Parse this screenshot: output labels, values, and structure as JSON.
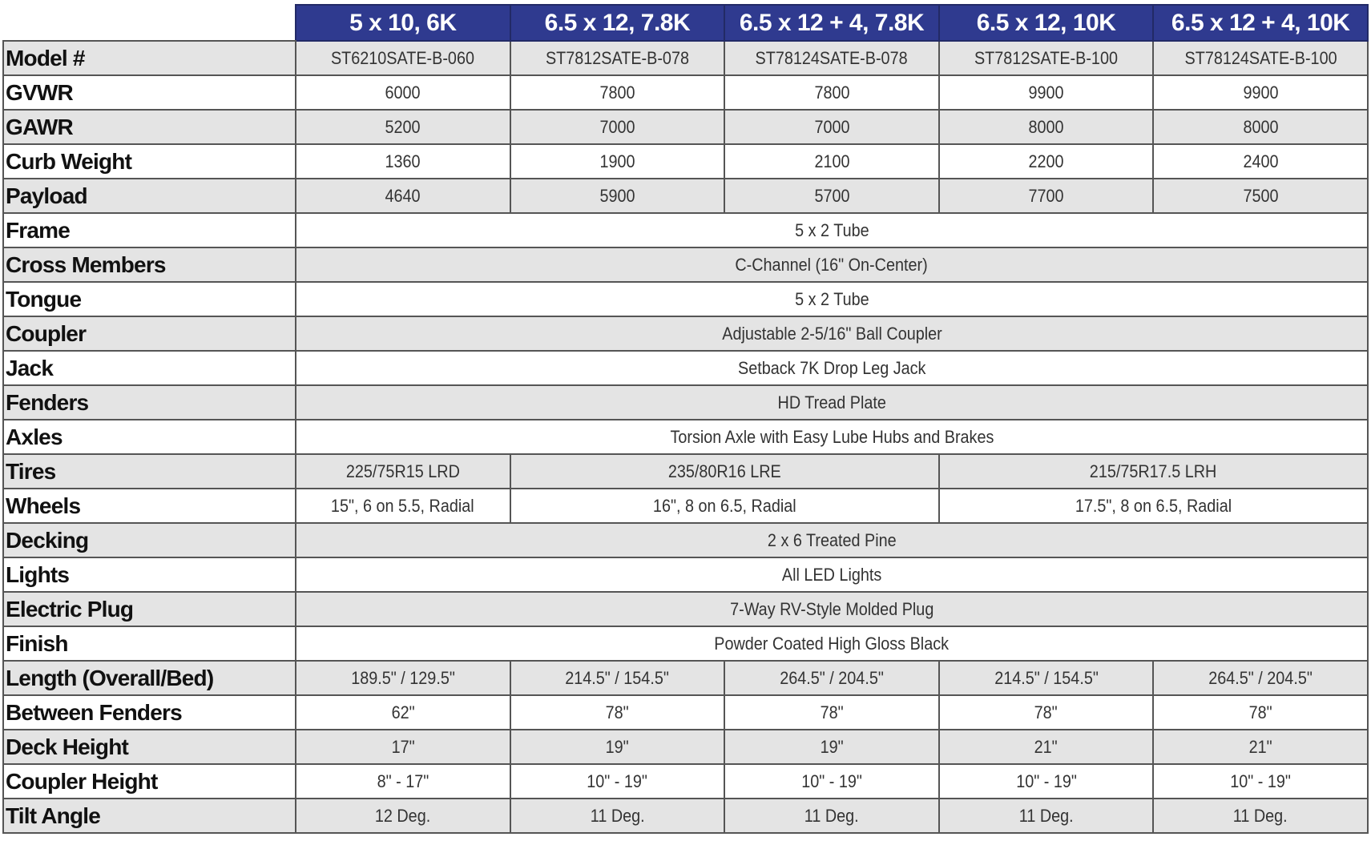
{
  "header": {
    "columns": [
      "5 x 10, 6K",
      "6.5 x 12, 7.8K",
      "6.5 x 12 + 4, 7.8K",
      "6.5 x 12, 10K",
      "6.5 x 12 + 4, 10K"
    ],
    "header_color": "#2f3a8f"
  },
  "rows": [
    {
      "label": "Model #",
      "cells": [
        {
          "v": "ST6210SATE-B-060",
          "span": 1
        },
        {
          "v": "ST7812SATE-B-078",
          "span": 1
        },
        {
          "v": "ST78124SATE-B-078",
          "span": 1
        },
        {
          "v": "ST7812SATE-B-100",
          "span": 1
        },
        {
          "v": "ST78124SATE-B-100",
          "span": 1
        }
      ]
    },
    {
      "label": "GVWR",
      "cells": [
        {
          "v": "6000",
          "span": 1
        },
        {
          "v": "7800",
          "span": 1
        },
        {
          "v": "7800",
          "span": 1
        },
        {
          "v": "9900",
          "span": 1
        },
        {
          "v": "9900",
          "span": 1
        }
      ]
    },
    {
      "label": "GAWR",
      "cells": [
        {
          "v": "5200",
          "span": 1
        },
        {
          "v": "7000",
          "span": 1
        },
        {
          "v": "7000",
          "span": 1
        },
        {
          "v": "8000",
          "span": 1
        },
        {
          "v": "8000",
          "span": 1
        }
      ]
    },
    {
      "label": "Curb Weight",
      "cells": [
        {
          "v": "1360",
          "span": 1
        },
        {
          "v": "1900",
          "span": 1
        },
        {
          "v": "2100",
          "span": 1
        },
        {
          "v": "2200",
          "span": 1
        },
        {
          "v": "2400",
          "span": 1
        }
      ]
    },
    {
      "label": "Payload",
      "cells": [
        {
          "v": "4640",
          "span": 1
        },
        {
          "v": "5900",
          "span": 1
        },
        {
          "v": "5700",
          "span": 1
        },
        {
          "v": "7700",
          "span": 1
        },
        {
          "v": "7500",
          "span": 1
        }
      ]
    },
    {
      "label": "Frame",
      "cells": [
        {
          "v": "5 x 2 Tube",
          "span": 5
        }
      ]
    },
    {
      "label": "Cross Members",
      "cells": [
        {
          "v": "C-Channel (16\" On-Center)",
          "span": 5
        }
      ]
    },
    {
      "label": "Tongue",
      "cells": [
        {
          "v": "5 x 2 Tube",
          "span": 5
        }
      ]
    },
    {
      "label": "Coupler",
      "cells": [
        {
          "v": "Adjustable 2-5/16\" Ball Coupler",
          "span": 5
        }
      ]
    },
    {
      "label": "Jack",
      "cells": [
        {
          "v": "Setback 7K Drop Leg Jack",
          "span": 5
        }
      ]
    },
    {
      "label": "Fenders",
      "cells": [
        {
          "v": "HD Tread Plate",
          "span": 5
        }
      ]
    },
    {
      "label": "Axles",
      "cells": [
        {
          "v": "Torsion Axle with Easy Lube Hubs and Brakes",
          "span": 5
        }
      ]
    },
    {
      "label": "Tires",
      "cells": [
        {
          "v": "225/75R15 LRD",
          "span": 1
        },
        {
          "v": "235/80R16 LRE",
          "span": 2
        },
        {
          "v": "215/75R17.5 LRH",
          "span": 2
        }
      ]
    },
    {
      "label": "Wheels",
      "cells": [
        {
          "v": "15\", 6 on 5.5, Radial",
          "span": 1
        },
        {
          "v": "16\", 8 on 6.5, Radial",
          "span": 2
        },
        {
          "v": "17.5\", 8 on 6.5, Radial",
          "span": 2
        }
      ]
    },
    {
      "label": "Decking",
      "cells": [
        {
          "v": "2 x 6 Treated Pine",
          "span": 5
        }
      ]
    },
    {
      "label": "Lights",
      "cells": [
        {
          "v": "All LED Lights",
          "span": 5
        }
      ]
    },
    {
      "label": "Electric Plug",
      "cells": [
        {
          "v": "7-Way RV-Style Molded Plug",
          "span": 5
        }
      ]
    },
    {
      "label": "Finish",
      "cells": [
        {
          "v": "Powder Coated High Gloss Black",
          "span": 5
        }
      ]
    },
    {
      "label": "Length (Overall/Bed)",
      "cells": [
        {
          "v": "189.5\" / 129.5\"",
          "span": 1
        },
        {
          "v": "214.5\" / 154.5\"",
          "span": 1
        },
        {
          "v": "264.5\" / 204.5\"",
          "span": 1
        },
        {
          "v": "214.5\" / 154.5\"",
          "span": 1
        },
        {
          "v": "264.5\" / 204.5\"",
          "span": 1
        }
      ]
    },
    {
      "label": "Between Fenders",
      "cells": [
        {
          "v": "62\"",
          "span": 1
        },
        {
          "v": "78\"",
          "span": 1
        },
        {
          "v": "78\"",
          "span": 1
        },
        {
          "v": "78\"",
          "span": 1
        },
        {
          "v": "78\"",
          "span": 1
        }
      ]
    },
    {
      "label": "Deck Height",
      "cells": [
        {
          "v": "17\"",
          "span": 1
        },
        {
          "v": "19\"",
          "span": 1
        },
        {
          "v": "19\"",
          "span": 1
        },
        {
          "v": "21\"",
          "span": 1
        },
        {
          "v": "21\"",
          "span": 1
        }
      ]
    },
    {
      "label": "Coupler Height",
      "cells": [
        {
          "v": "8\" - 17\"",
          "span": 1
        },
        {
          "v": "10\" - 19\"",
          "span": 1
        },
        {
          "v": "10\" - 19\"",
          "span": 1
        },
        {
          "v": "10\" - 19\"",
          "span": 1
        },
        {
          "v": "10\" - 19\"",
          "span": 1
        }
      ]
    },
    {
      "label": "Tilt Angle",
      "cells": [
        {
          "v": "12 Deg.",
          "span": 1
        },
        {
          "v": "11 Deg.",
          "span": 1
        },
        {
          "v": "11 Deg.",
          "span": 1
        },
        {
          "v": "11 Deg.",
          "span": 1
        },
        {
          "v": "11 Deg.",
          "span": 1
        }
      ]
    }
  ]
}
